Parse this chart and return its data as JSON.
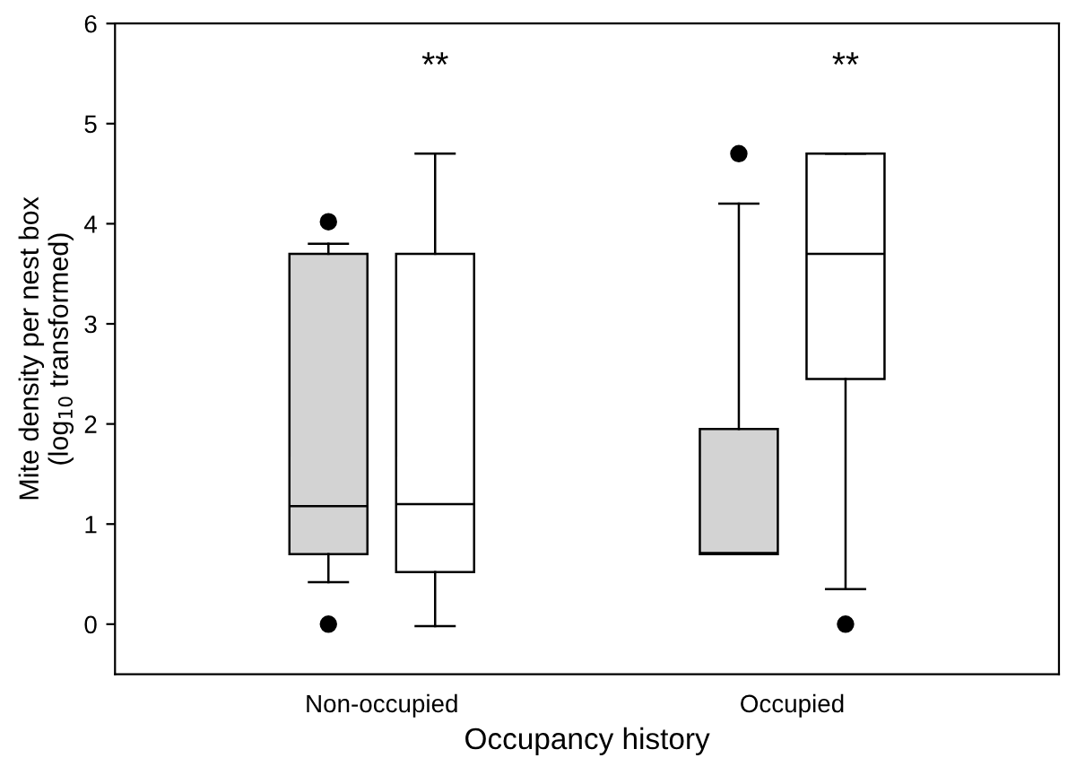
{
  "chart_data": {
    "type": "box",
    "xlabel": "Occupancy history",
    "ylabel": "Mite density per nest box\n(log$_{10}$ transformed)",
    "categories": [
      "Non-occupied",
      "Occupied"
    ],
    "series": [
      {
        "color": "#d3d3d3",
        "boxes": [
          {
            "low": 0.42,
            "q1": 0.7,
            "median": 1.18,
            "q3": 3.7,
            "high": 3.8,
            "outliers": [
              4.02,
              0
            ]
          },
          {
            "low": 0.7,
            "q1": 0.7,
            "median": 0.71,
            "q3": 1.95,
            "high": 4.2,
            "outliers": [
              4.7
            ]
          }
        ]
      },
      {
        "color": "#ffffff",
        "boxes": [
          {
            "low": -0.02,
            "q1": 0.52,
            "median": 1.2,
            "q3": 3.7,
            "high": 4.7
          },
          {
            "low": 0.35,
            "q1": 2.45,
            "median": 3.7,
            "q3": 4.7,
            "high": 4.7,
            "outliers": [
              0
            ]
          }
        ]
      }
    ],
    "annotations": [
      "**",
      "**"
    ],
    "ylim": [
      -0.5,
      6
    ],
    "yticks": [
      0,
      1,
      2,
      3,
      4,
      5,
      6
    ],
    "grid": false,
    "legend": false
  }
}
